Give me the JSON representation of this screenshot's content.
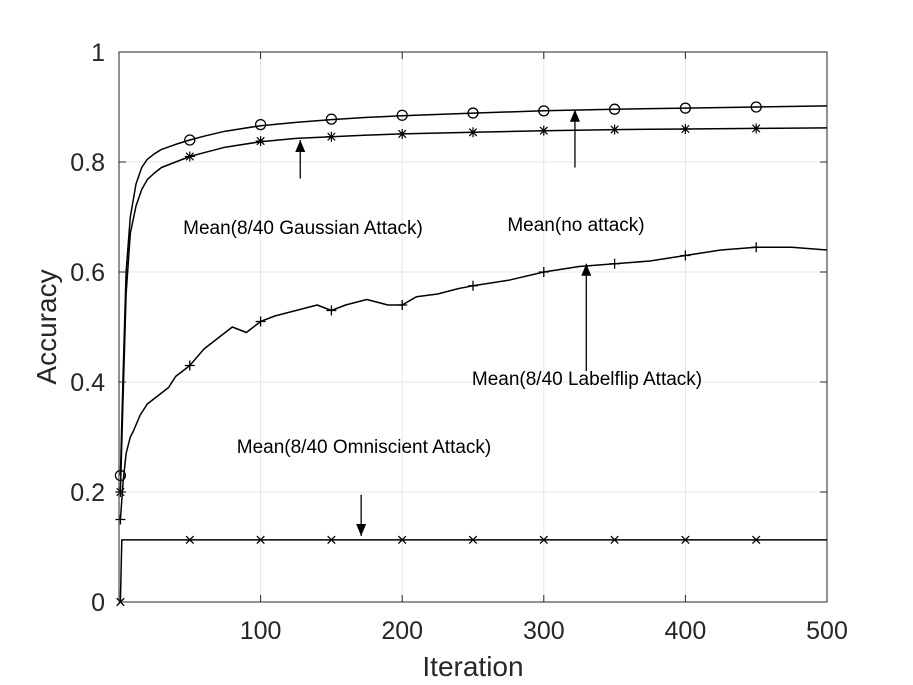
{
  "chart_data": {
    "type": "line",
    "xlabel": "Iteration",
    "ylabel": "Accuracy",
    "xlim": [
      0,
      500
    ],
    "ylim": [
      0,
      1
    ],
    "xticks": [
      100,
      200,
      300,
      400,
      500
    ],
    "yticks": [
      0,
      0.2,
      0.4,
      0.6,
      0.8,
      1
    ],
    "ytick_labels": [
      "0",
      "0.2",
      "0.4",
      "0.6",
      "0.8",
      "1"
    ],
    "grid": true,
    "line_color": "#000000",
    "series": [
      {
        "name": "Mean(no attack)",
        "marker": "circle",
        "x": [
          1,
          3,
          5,
          8,
          12,
          16,
          20,
          25,
          30,
          40,
          50,
          60,
          75,
          100,
          125,
          150,
          175,
          200,
          250,
          300,
          350,
          400,
          450,
          500
        ],
        "y": [
          0.23,
          0.42,
          0.6,
          0.7,
          0.76,
          0.79,
          0.805,
          0.815,
          0.823,
          0.832,
          0.84,
          0.847,
          0.856,
          0.866,
          0.872,
          0.877,
          0.881,
          0.884,
          0.889,
          0.893,
          0.896,
          0.898,
          0.9,
          0.902
        ],
        "marker_x": [
          1,
          50,
          100,
          150,
          200,
          250,
          300,
          350,
          400,
          450
        ],
        "marker_y": [
          0.23,
          0.84,
          0.868,
          0.878,
          0.885,
          0.889,
          0.893,
          0.896,
          0.898,
          0.9
        ]
      },
      {
        "name": "Mean(8/40 Gaussian Attack)",
        "marker": "asterisk",
        "x": [
          1,
          3,
          5,
          8,
          12,
          16,
          20,
          25,
          30,
          40,
          50,
          60,
          75,
          100,
          125,
          150,
          175,
          200,
          250,
          300,
          350,
          400,
          450,
          500
        ],
        "y": [
          0.2,
          0.38,
          0.56,
          0.67,
          0.72,
          0.75,
          0.768,
          0.78,
          0.79,
          0.8,
          0.81,
          0.817,
          0.827,
          0.837,
          0.843,
          0.846,
          0.849,
          0.851,
          0.854,
          0.857,
          0.859,
          0.86,
          0.861,
          0.862
        ],
        "marker_x": [
          1,
          50,
          100,
          150,
          200,
          250,
          300,
          350,
          400,
          450
        ],
        "marker_y": [
          0.2,
          0.81,
          0.838,
          0.846,
          0.851,
          0.854,
          0.857,
          0.859,
          0.86,
          0.861
        ]
      },
      {
        "name": "Mean(8/40 Labelflip Attack)",
        "marker": "plus",
        "x": [
          1,
          3,
          5,
          8,
          10,
          15,
          20,
          25,
          30,
          35,
          40,
          50,
          60,
          70,
          80,
          90,
          100,
          110,
          125,
          140,
          150,
          160,
          175,
          190,
          200,
          210,
          225,
          240,
          250,
          275,
          300,
          325,
          350,
          375,
          400,
          425,
          450,
          475,
          500
        ],
        "y": [
          0.15,
          0.22,
          0.27,
          0.3,
          0.31,
          0.34,
          0.36,
          0.37,
          0.38,
          0.39,
          0.41,
          0.43,
          0.46,
          0.48,
          0.5,
          0.49,
          0.51,
          0.52,
          0.53,
          0.54,
          0.53,
          0.54,
          0.55,
          0.54,
          0.54,
          0.555,
          0.56,
          0.57,
          0.575,
          0.585,
          0.6,
          0.61,
          0.615,
          0.62,
          0.63,
          0.64,
          0.645,
          0.645,
          0.64
        ],
        "marker_x": [
          1,
          50,
          100,
          150,
          200,
          250,
          300,
          350,
          400,
          450
        ],
        "marker_y": [
          0.15,
          0.43,
          0.51,
          0.53,
          0.54,
          0.575,
          0.6,
          0.615,
          0.63,
          0.645
        ]
      },
      {
        "name": "Mean(8/40 Omniscient Attack)",
        "marker": "x",
        "x": [
          1,
          2,
          500
        ],
        "y": [
          0.0,
          0.113,
          0.113
        ],
        "marker_x": [
          1,
          50,
          100,
          150,
          200,
          250,
          300,
          350,
          400,
          450
        ],
        "marker_y": [
          0.0,
          0.113,
          0.113,
          0.113,
          0.113,
          0.113,
          0.113,
          0.113,
          0.113,
          0.113
        ]
      }
    ],
    "annotations": [
      {
        "text": "Mean(8/40 Gaussian Attack)",
        "arrow_to": [
          128,
          0.84
        ],
        "arrow_from": [
          128,
          0.77
        ]
      },
      {
        "text": "Mean(no attack)",
        "arrow_to": [
          322,
          0.895
        ],
        "arrow_from": [
          322,
          0.79
        ]
      },
      {
        "text": "Mean(8/40 Labelflip Attack)",
        "arrow_to": [
          330,
          0.615
        ],
        "arrow_from": [
          330,
          0.42
        ]
      },
      {
        "text": "Mean(8/40 Omniscient Attack)",
        "arrow_to": [
          171,
          0.12
        ],
        "arrow_from": [
          171,
          0.195
        ]
      }
    ]
  }
}
